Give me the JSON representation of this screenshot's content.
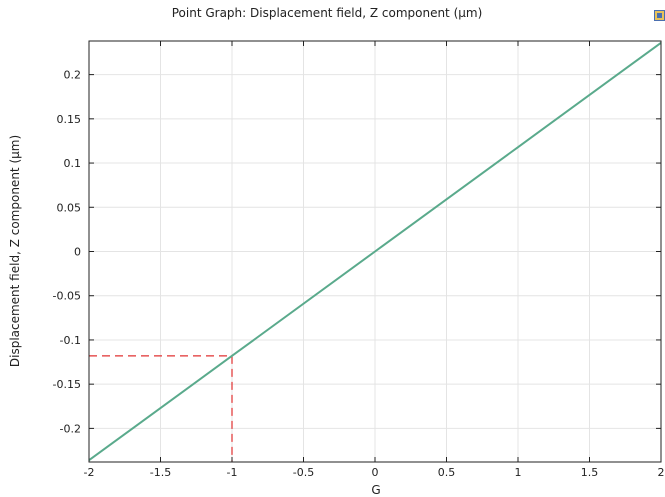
{
  "chart_data": {
    "type": "line",
    "title": "Point Graph: Displacement field, Z component (µm)",
    "xlabel": "G",
    "ylabel": "Displacement field, Z component (µm)",
    "xlim": [
      -2,
      2
    ],
    "ylim": [
      -0.238,
      0.238
    ],
    "xticks": [
      "-2",
      "-1.5",
      "-1",
      "-0.5",
      "0",
      "0.5",
      "1",
      "1.5",
      "2"
    ],
    "yticks": [
      "0.2",
      "0.15",
      "0.1",
      "0.05",
      "0",
      "-0.05",
      "-0.1",
      "-0.15",
      "-0.2"
    ],
    "grid": true,
    "series": [
      {
        "x": [
          -2,
          -1,
          0,
          1,
          2
        ],
        "y": [
          -0.236,
          -0.118,
          0,
          0.118,
          0.236
        ],
        "color": "#5aaa8c"
      }
    ],
    "annotations": [
      {
        "type": "dashed-guide",
        "x": -1,
        "y": -0.118,
        "color": "#e03030"
      }
    ]
  },
  "colors": {
    "line": "#5aaa8c",
    "guide": "#e03030",
    "grid": "#e4e4e4",
    "axis": "#222222"
  },
  "icons": {
    "corner": "plot-window-icon"
  }
}
